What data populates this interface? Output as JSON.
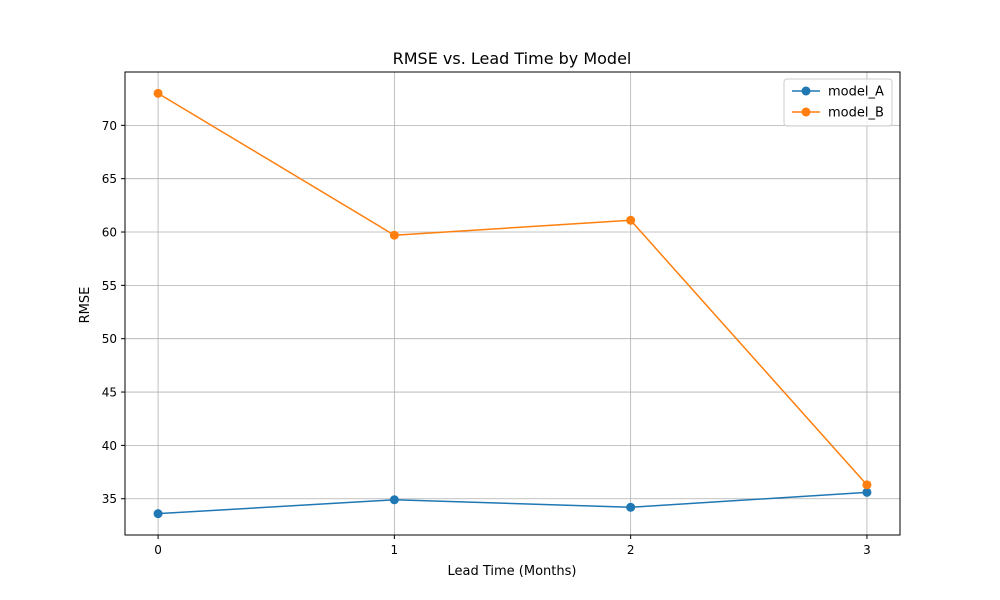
{
  "chart_data": {
    "type": "line",
    "title": "RMSE vs. Lead Time by Model",
    "xlabel": "Lead Time (Months)",
    "ylabel": "RMSE",
    "x": [
      0,
      1,
      2,
      3
    ],
    "x_ticks": [
      "0",
      "1",
      "2",
      "3"
    ],
    "y_ticks": [
      "35",
      "40",
      "45",
      "50",
      "55",
      "60",
      "65",
      "70"
    ],
    "xlim": [
      -0.14,
      3.14
    ],
    "ylim": [
      31.6,
      75.0
    ],
    "grid": true,
    "legend_position": "top-right",
    "series": [
      {
        "name": "model_A",
        "color": "#1f77b4",
        "values": [
          33.6,
          34.9,
          34.2,
          35.6
        ]
      },
      {
        "name": "model_B",
        "color": "#ff7f0e",
        "values": [
          73.0,
          59.7,
          61.1,
          36.3
        ]
      }
    ]
  }
}
